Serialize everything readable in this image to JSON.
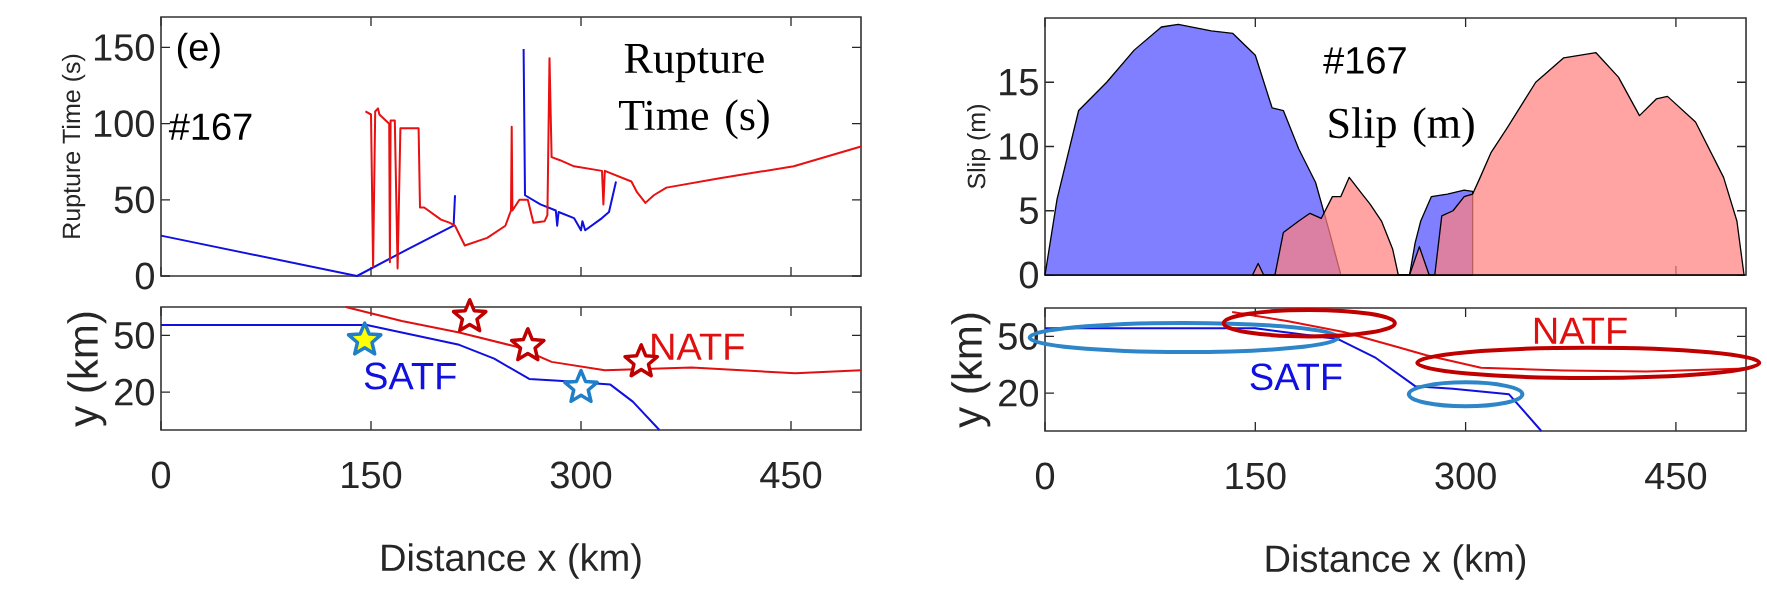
{
  "chart_data": [
    {
      "type": "line",
      "ylabel": "Rupture Time (s)",
      "annotations": [
        "(e)",
        "#167",
        "Rupture Time (s)"
      ],
      "xlim": [
        0,
        500
      ],
      "ylim": [
        0,
        170
      ],
      "xticks": [
        0,
        150,
        300,
        450
      ],
      "yticks": [
        0,
        50,
        100,
        150
      ],
      "tick_labels": "y",
      "series": [
        {
          "color": "#1010e0",
          "x": [
            0,
            140,
            175,
            209,
            210,
            258.5,
            259,
            260,
            271,
            282,
            283,
            284,
            295,
            300,
            301,
            303,
            315,
            320,
            325
          ],
          "values": [
            26.5,
            0,
            17,
            33,
            53,
            null,
            149,
            53,
            47,
            43,
            33,
            42,
            38,
            30,
            36,
            30,
            38,
            42,
            62
          ]
        },
        {
          "color": "#e81010",
          "x": [
            146,
            150,
            151.5,
            153,
            155,
            156,
            163,
            163.5,
            164,
            167,
            169,
            171,
            184,
            185,
            188,
            200,
            206,
            210,
            217,
            233,
            246,
            250,
            250.5,
            251,
            256,
            262,
            266,
            274,
            276,
            277.5,
            279,
            285,
            295,
            315,
            316,
            317,
            336,
            340,
            346,
            352,
            361,
            398,
            452,
            500
          ],
          "values": [
            108,
            106,
            6,
            108,
            110,
            106,
            100,
            9,
            102,
            102,
            5,
            97,
            97,
            45,
            45,
            37,
            35,
            33,
            20,
            25,
            33,
            43,
            98,
            43,
            50,
            50,
            35,
            36,
            40,
            143,
            78,
            76,
            72,
            69,
            47,
            69,
            62,
            55,
            48,
            53,
            58,
            64,
            72,
            85
          ]
        }
      ]
    },
    {
      "type": "line",
      "xlabel": "Distance x (km)",
      "ylabel": "y (km)",
      "xlim": [
        0,
        500
      ],
      "ylim": [
        0,
        65
      ],
      "xticks": [
        0,
        150,
        300,
        450
      ],
      "yticks": [
        20,
        50
      ],
      "series": [
        {
          "type": "scatter",
          "marker": "star",
          "color": "#1f7fc8",
          "colors": [
            "#ffff00",
            "#ffffff"
          ],
          "x": [
            145.5,
            300
          ],
          "values": [
            47.5,
            22.4
          ]
        },
        {
          "type": "scatter",
          "marker": "star",
          "color": "#c00000",
          "colors": [
            "#ffffff",
            "#ffffff",
            "#ffffff"
          ],
          "x": [
            220.5,
            262,
            343
          ],
          "values": [
            59.8,
            44.5,
            36
          ]
        },
        {
          "name": "SATF",
          "color": "#1010e0",
          "x": [
            0,
            147,
            172,
            213,
            238,
            263,
            284,
            321,
            337,
            356
          ],
          "values": [
            55.5,
            55.5,
            51.5,
            45,
            37.7,
            27,
            26,
            24,
            15,
            0
          ]
        },
        {
          "name": "NATF",
          "color": "#e01010",
          "x": [
            132,
            172,
            213,
            254,
            279,
            317,
            379,
            453,
            500
          ],
          "values": [
            65,
            57.6,
            51.5,
            44,
            36,
            31.6,
            33,
            30,
            31.6
          ]
        }
      ]
    },
    {
      "type": "area",
      "ylabel": "Slip (m)",
      "annotations": [
        "#167",
        "Slip (m)"
      ],
      "xlim": [
        0,
        500
      ],
      "ylim": [
        0,
        20
      ],
      "xticks": [
        0,
        150,
        300,
        450
      ],
      "yticks": [
        0,
        5,
        10,
        15
      ],
      "tick_labels": "y",
      "series": [
        {
          "color": "#7f7fff",
          "x": [
            0,
            8.6,
            24,
            44,
            63.6,
            83,
            95,
            118.6,
            134,
            150,
            162,
            170,
            181,
            193,
            203,
            211,
            260,
            264,
            268,
            275.6,
            287,
            299,
            305
          ],
          "values": [
            0,
            5.9,
            12.8,
            15,
            17.5,
            19.3,
            19.5,
            19,
            18.8,
            17.1,
            13,
            12.8,
            9.8,
            7.2,
            3.3,
            0,
            0,
            2.5,
            4.2,
            6.1,
            6.3,
            6.6,
            6.5
          ]
        },
        {
          "color": "#ff7f7f",
          "x": [
            148,
            152,
            156,
            164,
            170,
            181,
            189,
            197,
            205,
            211,
            217,
            224,
            232,
            240,
            248,
            252,
            260,
            267,
            274,
            278,
            283,
            291,
            299,
            305,
            310,
            318,
            330,
            350,
            370,
            393,
            409,
            424,
            436,
            444,
            464,
            484,
            493.5,
            498.6
          ],
          "values": [
            0,
            0.9,
            0,
            0,
            3.3,
            4.2,
            4.8,
            4.4,
            6.1,
            6.1,
            7.6,
            6.6,
            5.5,
            4.2,
            2,
            0,
            0,
            2.2,
            0,
            0,
            4.6,
            5,
            6.1,
            6.3,
            7.5,
            9.5,
            11.5,
            15,
            16.9,
            17.3,
            15.4,
            12.4,
            13.7,
            13.9,
            11.9,
            7.6,
            4.2,
            0
          ]
        }
      ]
    },
    {
      "type": "line",
      "xlabel": "Distance x (km)",
      "ylabel": "y (km)",
      "xlim": [
        0,
        500
      ],
      "ylim": [
        0,
        65
      ],
      "xticks": [
        0,
        150,
        300,
        450
      ],
      "yticks": [
        20,
        50
      ],
      "series": [
        {
          "name": "SATF",
          "color": "#1010e0",
          "x": [
            0,
            150,
            209,
            236,
            264,
            291,
            331,
            354
          ],
          "values": [
            54.3,
            54.3,
            48.6,
            38.6,
            23.7,
            22.3,
            19.4,
            0
          ]
        },
        {
          "name": "NATF",
          "color": "#e01010",
          "x": [
            133.5,
            173.5,
            213,
            252,
            272,
            311,
            370,
            429,
            500
          ],
          "values": [
            62.9,
            58,
            52.3,
            44.3,
            40,
            33.4,
            32,
            31.4,
            33
          ]
        }
      ]
    }
  ]
}
